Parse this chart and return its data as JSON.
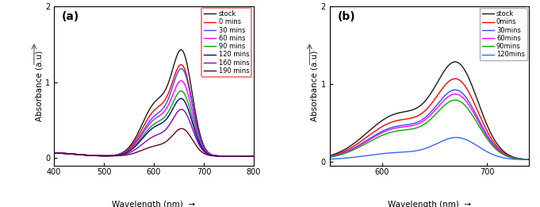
{
  "panel_a": {
    "label": "(a)",
    "xlabel": "Wavelength (nm)",
    "ylabel": "Absorbance (a.u)",
    "xlim": [
      400,
      800
    ],
    "ylim": [
      -0.1,
      2.0
    ],
    "xticks": [
      400,
      500,
      600,
      700,
      800
    ],
    "yticks": [
      0,
      1,
      2
    ],
    "legend_box_color": "#ff8888",
    "series": [
      {
        "name": "stock",
        "color": "#1a1a1a",
        "peak1_x": 607,
        "peak1_y": 0.7,
        "peak2_x": 658,
        "peak2_y": 1.22
      },
      {
        "name": "0 mins",
        "color": "#ff0000",
        "peak1_x": 607,
        "peak1_y": 0.6,
        "peak2_x": 658,
        "peak2_y": 1.05
      },
      {
        "name": "30 mins",
        "color": "#4444ff",
        "peak1_x": 607,
        "peak1_y": 0.52,
        "peak2_x": 658,
        "peak2_y": 1.02
      },
      {
        "name": "60 mins",
        "color": "#ff00ff",
        "peak1_x": 607,
        "peak1_y": 0.48,
        "peak2_x": 658,
        "peak2_y": 0.87
      },
      {
        "name": "90 mins",
        "color": "#00aa00",
        "peak1_x": 607,
        "peak1_y": 0.42,
        "peak2_x": 658,
        "peak2_y": 0.75
      },
      {
        "name": "120 mins",
        "color": "#000099",
        "peak1_x": 607,
        "peak1_y": 0.38,
        "peak2_x": 658,
        "peak2_y": 0.66
      },
      {
        "name": "160 mins",
        "color": "#8800bb",
        "peak1_x": 607,
        "peak1_y": 0.26,
        "peak2_x": 658,
        "peak2_y": 0.55
      },
      {
        "name": "190 mins",
        "color": "#660033",
        "peak1_x": 607,
        "peak1_y": 0.13,
        "peak2_x": 658,
        "peak2_y": 0.33
      }
    ]
  },
  "panel_b": {
    "label": "(b)",
    "xlabel": "Wavelength (nm)",
    "ylabel": "Absorbance (a.u)",
    "xlim": [
      550,
      740
    ],
    "ylim": [
      -0.05,
      2.0
    ],
    "xticks": [
      600,
      700
    ],
    "yticks": [
      0,
      1,
      2
    ],
    "series": [
      {
        "name": "stock",
        "color": "#1a1a1a",
        "peak1_x": 616,
        "peak1_y": 0.58,
        "peak2_x": 672,
        "peak2_y": 1.15
      },
      {
        "name": "0mins",
        "color": "#ff0000",
        "peak1_x": 616,
        "peak1_y": 0.49,
        "peak2_x": 672,
        "peak2_y": 0.95
      },
      {
        "name": "30mins",
        "color": "#4444ff",
        "peak1_x": 616,
        "peak1_y": 0.42,
        "peak2_x": 672,
        "peak2_y": 0.82
      },
      {
        "name": "60mins",
        "color": "#ff00ff",
        "peak1_x": 616,
        "peak1_y": 0.4,
        "peak2_x": 672,
        "peak2_y": 0.77
      },
      {
        "name": "90mins",
        "color": "#00aa00",
        "peak1_x": 616,
        "peak1_y": 0.36,
        "peak2_x": 672,
        "peak2_y": 0.7
      },
      {
        "name": "120mins",
        "color": "#3366ff",
        "peak1_x": 616,
        "peak1_y": 0.09,
        "peak2_x": 672,
        "peak2_y": 0.27
      }
    ]
  }
}
